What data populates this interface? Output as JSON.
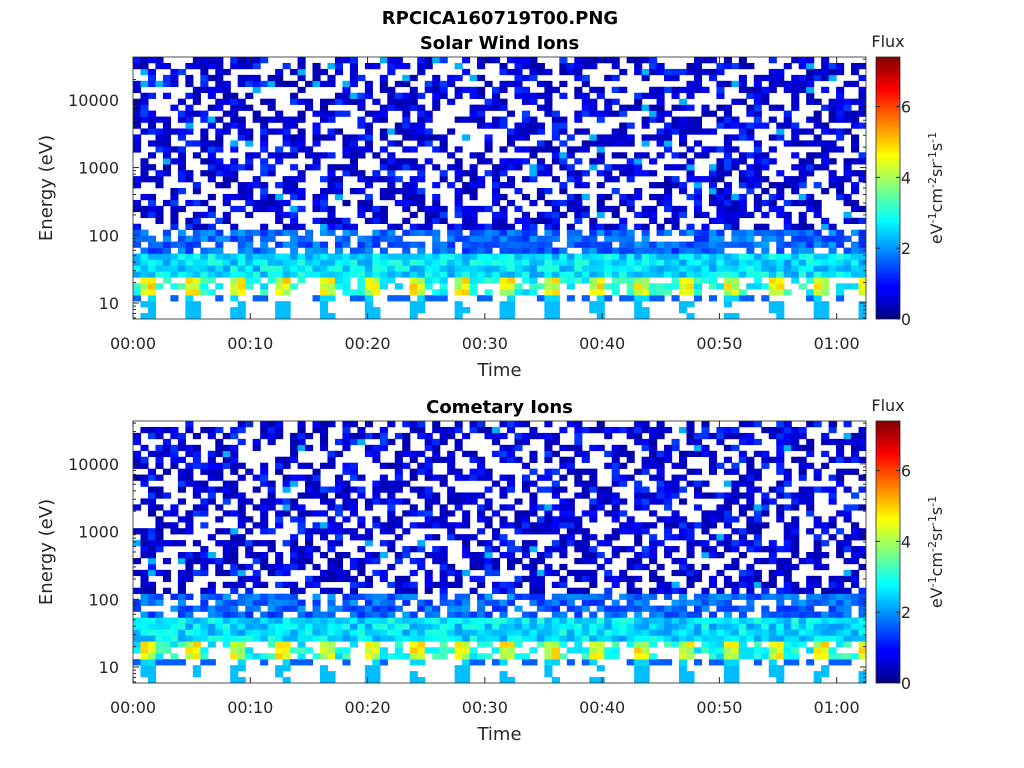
{
  "figure_title": "RPCICA160719T00.PNG",
  "chart_data": [
    {
      "type": "heatmap",
      "title": "Solar Wind Ions",
      "xlabel": "Time",
      "ylabel": "Energy (eV)",
      "x_ticks": [
        "00:00",
        "00:10",
        "00:20",
        "00:30",
        "00:40",
        "00:50",
        "01:00"
      ],
      "x_tick_minutes": [
        0,
        10,
        20,
        30,
        40,
        50,
        60
      ],
      "xlim_minutes": [
        0,
        62.5
      ],
      "y_scale": "log",
      "y_ticks": [
        "10",
        "100",
        "1000",
        "10000"
      ],
      "y_tick_values": [
        10,
        100,
        1000,
        10000
      ],
      "ylim": [
        5.8,
        43000
      ],
      "colorbar": {
        "title": "Flux",
        "label": "eV-1cm-2sr-1s-1",
        "ticks": [
          0,
          2,
          4,
          6
        ],
        "range": [
          0,
          7.4
        ],
        "colormap": "jet"
      },
      "grid": false,
      "seed": 11
    },
    {
      "type": "heatmap",
      "title": "Cometary Ions",
      "xlabel": "Time",
      "ylabel": "Energy (eV)",
      "x_ticks": [
        "00:00",
        "00:10",
        "00:20",
        "00:30",
        "00:40",
        "00:50",
        "01:00"
      ],
      "x_tick_minutes": [
        0,
        10,
        20,
        30,
        40,
        50,
        60
      ],
      "xlim_minutes": [
        0,
        62.5
      ],
      "y_scale": "log",
      "y_ticks": [
        "10",
        "100",
        "1000",
        "10000"
      ],
      "y_tick_values": [
        10,
        100,
        1000,
        10000
      ],
      "ylim": [
        5.8,
        43000
      ],
      "colorbar": {
        "title": "Flux",
        "label": "eV-1cm-2sr-1s-1",
        "ticks": [
          0,
          2,
          4,
          6
        ],
        "range": [
          0,
          7.4
        ],
        "colormap": "jet"
      },
      "grid": false,
      "seed": 11
    }
  ]
}
